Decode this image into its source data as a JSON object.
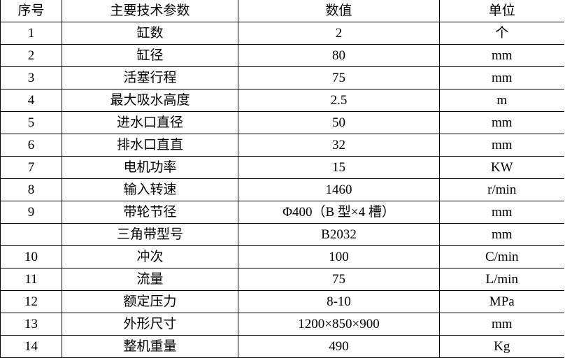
{
  "table": {
    "columns": [
      {
        "key": "serial",
        "label": "序号"
      },
      {
        "key": "param",
        "label": "主要技术参数"
      },
      {
        "key": "value",
        "label": "数值"
      },
      {
        "key": "unit",
        "label": "单位"
      }
    ],
    "rows": [
      {
        "serial": "1",
        "param": "缸数",
        "value": "2",
        "unit": "个"
      },
      {
        "serial": "2",
        "param": "缸径",
        "value": "80",
        "unit": "mm"
      },
      {
        "serial": "3",
        "param": "活塞行程",
        "value": "75",
        "unit": "mm"
      },
      {
        "serial": "4",
        "param": "最大吸水高度",
        "value": "2.5",
        "unit": "m"
      },
      {
        "serial": "5",
        "param": "进水口直径",
        "value": "50",
        "unit": "mm"
      },
      {
        "serial": "6",
        "param": "排水口直直",
        "value": "32",
        "unit": "mm"
      },
      {
        "serial": "7",
        "param": "电机功率",
        "value": "15",
        "unit": "KW"
      },
      {
        "serial": "8",
        "param": "输入转速",
        "value": "1460",
        "unit": "r/min"
      },
      {
        "serial": "9",
        "param": "带轮节径",
        "value": "Φ400（B 型×4 槽）",
        "unit": "mm"
      },
      {
        "serial": "",
        "param": "三角带型号",
        "value": "B2032",
        "unit": "mm"
      },
      {
        "serial": "10",
        "param": "冲次",
        "value": "100",
        "unit": "C/min"
      },
      {
        "serial": "11",
        "param": "流量",
        "value": "75",
        "unit": "L/min"
      },
      {
        "serial": "12",
        "param": "额定压力",
        "value": "8-10",
        "unit": "MPa"
      },
      {
        "serial": "13",
        "param": "外形尺寸",
        "value": "1200×850×900",
        "unit": "mm"
      },
      {
        "serial": "14",
        "param": "整机重量",
        "value": "490",
        "unit": "Kg"
      }
    ],
    "border_color": "#000000",
    "background_color": "#ffffff"
  }
}
